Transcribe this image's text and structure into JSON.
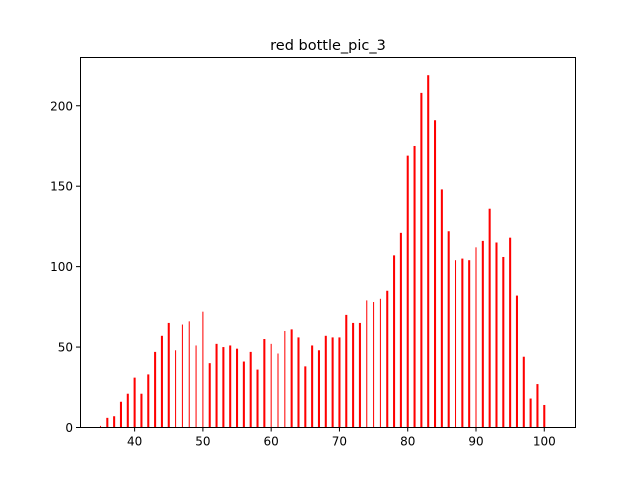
{
  "chart_data": {
    "type": "bar",
    "title": "red bottle_pic_3",
    "xlabel": "",
    "ylabel": "",
    "xlim": [
      32,
      104.5
    ],
    "ylim": [
      0,
      230
    ],
    "grid": false,
    "bar_color": "#ff0000",
    "x_ticks": [
      40,
      50,
      60,
      70,
      80,
      90,
      100
    ],
    "y_ticks": [
      0,
      50,
      100,
      150,
      200
    ],
    "x": [
      35,
      36,
      37,
      38,
      39,
      40,
      41,
      42,
      43,
      44,
      45,
      46,
      47,
      48,
      49,
      50,
      51,
      52,
      53,
      54,
      55,
      56,
      57,
      58,
      59,
      60,
      61,
      62,
      63,
      64,
      65,
      66,
      67,
      68,
      69,
      70,
      71,
      72,
      73,
      74,
      75,
      76,
      77,
      78,
      79,
      80,
      81,
      82,
      83,
      84,
      85,
      86,
      87,
      88,
      89,
      90,
      91,
      92,
      93,
      94,
      95,
      96,
      97,
      98,
      99,
      100
    ],
    "values": [
      1,
      6,
      7,
      16,
      21,
      31,
      21,
      33,
      47,
      57,
      65,
      48,
      64,
      66,
      51,
      72,
      40,
      52,
      50,
      51,
      49,
      41,
      47,
      36,
      55,
      52,
      46,
      60,
      61,
      56,
      38,
      51,
      48,
      57,
      56,
      56,
      70,
      65,
      65,
      79,
      78,
      80,
      85,
      107,
      121,
      169,
      175,
      208,
      219,
      191,
      148,
      122,
      104,
      105,
      104,
      112,
      116,
      136,
      115,
      106,
      118,
      82,
      44,
      18,
      27,
      14
    ],
    "widths": [
      0.15,
      0.3,
      0.3,
      0.3,
      0.3,
      0.3,
      0.3,
      0.3,
      0.3,
      0.3,
      0.3,
      0.15,
      0.15,
      0.15,
      0.15,
      0.15,
      0.3,
      0.3,
      0.3,
      0.3,
      0.3,
      0.3,
      0.3,
      0.3,
      0.3,
      0.15,
      0.15,
      0.15,
      0.3,
      0.3,
      0.3,
      0.3,
      0.3,
      0.3,
      0.3,
      0.3,
      0.3,
      0.3,
      0.3,
      0.15,
      0.15,
      0.15,
      0.3,
      0.3,
      0.3,
      0.3,
      0.3,
      0.3,
      0.3,
      0.3,
      0.3,
      0.3,
      0.15,
      0.3,
      0.3,
      0.15,
      0.3,
      0.3,
      0.3,
      0.3,
      0.3,
      0.3,
      0.3,
      0.3,
      0.3,
      0.3
    ]
  }
}
